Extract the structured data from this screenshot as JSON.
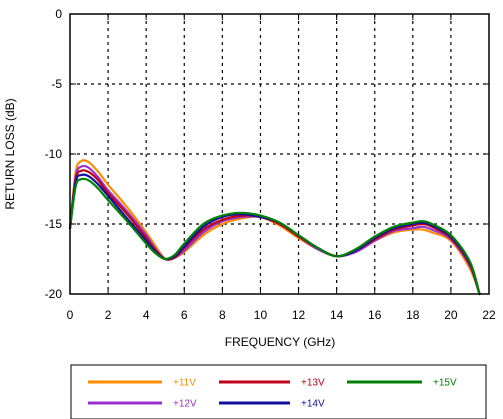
{
  "chart_data": {
    "type": "line",
    "xlabel": "FREQUENCY (GHz)",
    "ylabel": "RETURN LOSS (dB)",
    "xlim": [
      0,
      22
    ],
    "ylim": [
      -20,
      0
    ],
    "x_ticks": [
      "0",
      "2",
      "4",
      "6",
      "8",
      "10",
      "12",
      "14",
      "16",
      "18",
      "20",
      "22"
    ],
    "y_ticks": [
      "0",
      "-5",
      "-10",
      "-15",
      "-20"
    ],
    "grid": true,
    "legend_position": "bottom",
    "series": [
      {
        "name": "+11V",
        "color": "#ff8c00",
        "x": [
          0,
          0.3,
          0.6,
          1,
          1.5,
          2,
          3,
          4,
          4.5,
          5,
          5.5,
          6,
          7,
          8,
          9,
          10,
          11,
          12,
          13,
          14,
          15,
          16,
          17,
          18,
          18.5,
          19,
          20,
          21,
          21.5
        ],
        "y": [
          -15.3,
          -11.3,
          -10.5,
          -10.6,
          -11.3,
          -12.2,
          -13.8,
          -15.6,
          -16.6,
          -17.5,
          -17.4,
          -17.0,
          -15.8,
          -15.0,
          -14.6,
          -14.5,
          -15.1,
          -16.0,
          -16.8,
          -17.3,
          -17.0,
          -16.2,
          -15.6,
          -15.4,
          -15.4,
          -15.6,
          -16.2,
          -18.2,
          -20
        ]
      },
      {
        "name": "+12V",
        "color": "#9932cc",
        "x": [
          0,
          0.3,
          0.6,
          1,
          1.5,
          2,
          3,
          4,
          4.5,
          5,
          5.5,
          6,
          7,
          8,
          9,
          10,
          11,
          12,
          13,
          14,
          15,
          16,
          17,
          18,
          18.5,
          19,
          20,
          21,
          21.5
        ],
        "y": [
          -15.3,
          -11.6,
          -10.9,
          -11.0,
          -11.7,
          -12.6,
          -14.1,
          -15.8,
          -16.8,
          -17.5,
          -17.4,
          -16.9,
          -15.6,
          -14.8,
          -14.5,
          -14.5,
          -15.0,
          -15.9,
          -16.8,
          -17.3,
          -17.0,
          -16.2,
          -15.5,
          -15.3,
          -15.2,
          -15.4,
          -16.1,
          -18.0,
          -20
        ]
      },
      {
        "name": "+13V",
        "color": "#c00018",
        "x": [
          0,
          0.3,
          0.6,
          1,
          1.5,
          2,
          3,
          4,
          4.5,
          5,
          5.5,
          6,
          7,
          8,
          9,
          10,
          11,
          12,
          13,
          14,
          15,
          16,
          17,
          18,
          18.5,
          19,
          20,
          21,
          21.5
        ],
        "y": [
          -15.3,
          -11.8,
          -11.2,
          -11.3,
          -11.9,
          -12.8,
          -14.3,
          -16.0,
          -16.9,
          -17.5,
          -17.4,
          -16.7,
          -15.4,
          -14.7,
          -14.4,
          -14.5,
          -15.0,
          -15.9,
          -16.7,
          -17.3,
          -16.9,
          -16.1,
          -15.4,
          -15.1,
          -15.0,
          -15.2,
          -16.0,
          -17.9,
          -20
        ]
      },
      {
        "name": "+14V",
        "color": "#1010a0",
        "x": [
          0,
          0.3,
          0.6,
          1,
          1.5,
          2,
          3,
          4,
          4.5,
          5,
          5.5,
          6,
          7,
          8,
          9,
          10,
          11,
          12,
          13,
          14,
          15,
          16,
          17,
          18,
          18.5,
          19,
          20,
          21,
          21.5
        ],
        "y": [
          -15.3,
          -12.0,
          -11.5,
          -11.6,
          -12.2,
          -13.0,
          -14.6,
          -16.2,
          -17.0,
          -17.5,
          -17.3,
          -16.6,
          -15.2,
          -14.5,
          -14.3,
          -14.5,
          -14.9,
          -15.8,
          -16.7,
          -17.3,
          -16.9,
          -16.0,
          -15.3,
          -15.0,
          -14.9,
          -15.1,
          -15.9,
          -17.8,
          -20
        ]
      },
      {
        "name": "+15V",
        "color": "#008000",
        "x": [
          0,
          0.3,
          0.6,
          1,
          1.5,
          2,
          3,
          4,
          4.5,
          5,
          5.5,
          6,
          7,
          8,
          9,
          10,
          11,
          12,
          13,
          14,
          15,
          16,
          17,
          18,
          18.5,
          19,
          20,
          21,
          21.5
        ],
        "y": [
          -15.3,
          -12.3,
          -11.8,
          -11.9,
          -12.5,
          -13.3,
          -14.8,
          -16.4,
          -17.1,
          -17.5,
          -17.2,
          -16.4,
          -15.0,
          -14.4,
          -14.2,
          -14.4,
          -14.9,
          -15.8,
          -16.7,
          -17.3,
          -16.8,
          -15.9,
          -15.2,
          -14.9,
          -14.8,
          -15.0,
          -15.8,
          -17.7,
          -20
        ]
      }
    ]
  },
  "legend": {
    "items": [
      {
        "label": "+11V",
        "color": "#ff8c00"
      },
      {
        "label": "+12V",
        "color": "#9932cc"
      },
      {
        "label": "+13V",
        "color": "#c00018"
      },
      {
        "label": "+14V",
        "color": "#1010a0"
      },
      {
        "label": "+15V",
        "color": "#008000"
      }
    ]
  }
}
